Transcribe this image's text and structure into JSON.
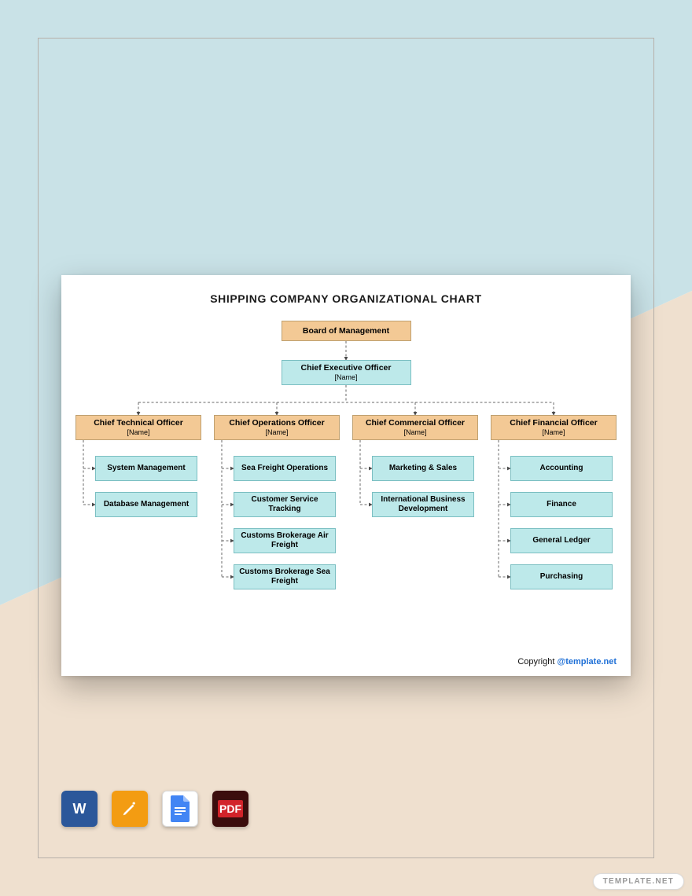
{
  "background": {
    "top_color": "#c9e2e7",
    "bottom_color": "#efe0cf",
    "frame_border": "#b6b0aa"
  },
  "card": {
    "bg": "#ffffff"
  },
  "title": "SHIPPING COMPANY ORGANIZATIONAL CHART",
  "palette": {
    "orange_fill": "#f3c995",
    "orange_border": "#bfa070",
    "cyan_fill": "#bde9ea",
    "cyan_border": "#7bbfc2",
    "connector": "#6a6a6a",
    "arrow": "#4a4a4a"
  },
  "chart": {
    "type": "org-tree",
    "name_placeholder": "[Name]",
    "root": {
      "label": "Board of Management"
    },
    "ceo": {
      "label": "Chief Executive Officer"
    },
    "chiefs": [
      {
        "label": "Chief Technical Officer",
        "depts": [
          "System Management",
          "Database Management"
        ]
      },
      {
        "label": "Chief Operations Officer",
        "depts": [
          "Sea Freight Operations",
          "Customer Service Tracking",
          "Customs Brokerage Air Freight",
          "Customs Brokerage Sea Freight"
        ]
      },
      {
        "label": "Chief Commercial Officer",
        "depts": [
          "Marketing & Sales",
          "International Business Development"
        ]
      },
      {
        "label": "Chief Financial Officer",
        "depts": [
          "Accounting",
          "Finance",
          "General Ledger",
          "Purchasing"
        ]
      }
    ]
  },
  "copyright": {
    "prefix": "Copyright ",
    "link": "@template.net"
  },
  "app_icons": [
    "word",
    "pages",
    "gdoc",
    "pdf"
  ],
  "watermark": "TEMPLATE.NET"
}
